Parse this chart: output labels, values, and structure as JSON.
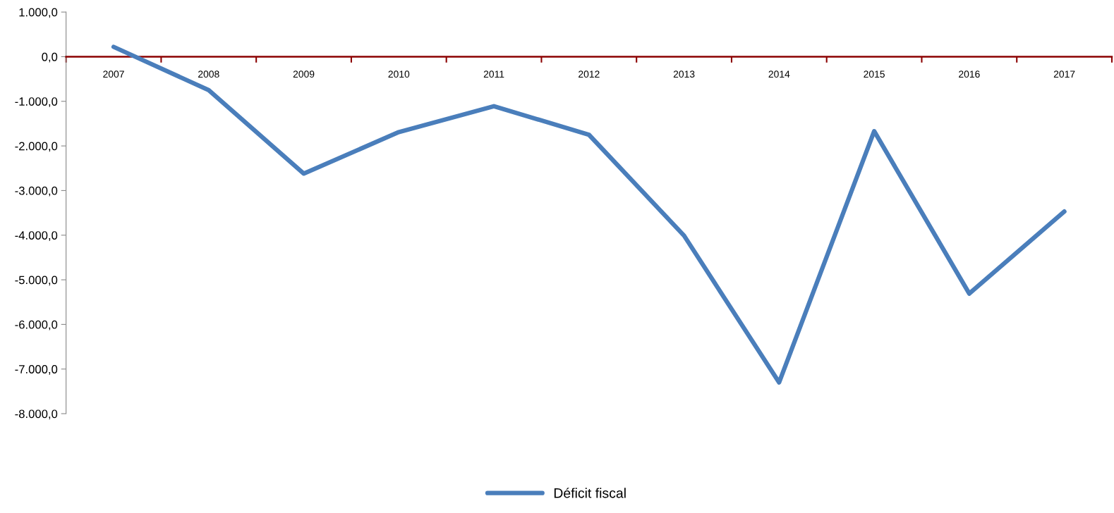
{
  "chart_data": {
    "type": "line",
    "categories": [
      "2007",
      "2008",
      "2009",
      "2010",
      "2011",
      "2012",
      "2013",
      "2014",
      "2015",
      "2016",
      "2017"
    ],
    "series": [
      {
        "name": "Déficit fiscal",
        "color": "#4a7ebb",
        "values": [
          220,
          -750,
          -2620,
          -1690,
          -1110,
          -1750,
          -4010,
          -7300,
          -1670,
          -5310,
          -3470
        ]
      }
    ],
    "ylim": [
      -8000,
      1000
    ],
    "yticks": [
      {
        "value": 1000,
        "label": "1.000,0"
      },
      {
        "value": 0,
        "label": "0,0"
      },
      {
        "value": -1000,
        "label": "-1.000,0"
      },
      {
        "value": -2000,
        "label": "-2.000,0"
      },
      {
        "value": -3000,
        "label": "-3.000,0"
      },
      {
        "value": -4000,
        "label": "-4.000,0"
      },
      {
        "value": -5000,
        "label": "-5.000,0"
      },
      {
        "value": -6000,
        "label": "-6.000,0"
      },
      {
        "value": -7000,
        "label": "-7.000,0"
      },
      {
        "value": -8000,
        "label": "-8.000,0"
      }
    ],
    "grid": false,
    "legend": "bottom",
    "marker": "none",
    "line_style": "solid"
  }
}
